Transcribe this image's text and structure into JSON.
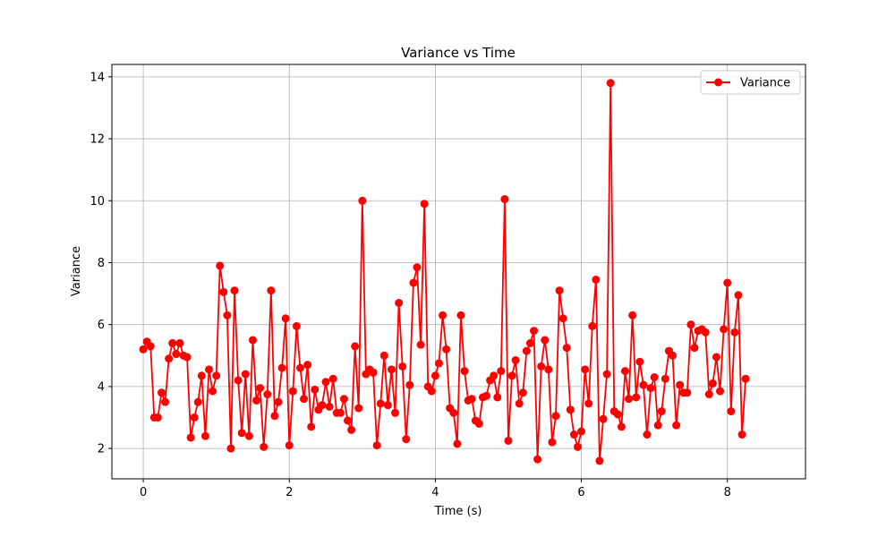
{
  "chart_data": {
    "type": "line",
    "title": "Variance vs Time",
    "xlabel": "Time (s)",
    "ylabel": "Variance",
    "xlim": [
      -0.43,
      9.07
    ],
    "ylim": [
      1.02,
      14.4
    ],
    "xticks": [
      0,
      2,
      4,
      6,
      8
    ],
    "yticks": [
      2,
      4,
      6,
      8,
      10,
      12,
      14
    ],
    "grid": true,
    "legend_position": "top-right",
    "series": [
      {
        "name": "Variance",
        "color": "#ff0000",
        "marker": "circle",
        "x_start": 0.0,
        "x_step": 0.05,
        "values": [
          5.2,
          5.45,
          5.3,
          3.0,
          3.0,
          3.8,
          3.5,
          4.9,
          5.4,
          5.05,
          5.4,
          5.0,
          4.95,
          2.35,
          3.0,
          3.5,
          4.35,
          2.4,
          4.55,
          3.85,
          4.35,
          7.9,
          7.05,
          6.3,
          2.0,
          7.1,
          4.2,
          2.5,
          4.4,
          2.4,
          5.5,
          3.55,
          3.95,
          2.05,
          3.75,
          7.1,
          3.05,
          3.5,
          4.6,
          6.2,
          2.1,
          3.85,
          5.95,
          4.6,
          3.6,
          4.7,
          2.7,
          3.9,
          3.25,
          3.4,
          4.15,
          3.35,
          4.25,
          3.15,
          3.15,
          3.6,
          2.9,
          2.6,
          5.3,
          3.3,
          10.0,
          4.4,
          4.55,
          4.45,
          2.1,
          3.45,
          5.0,
          3.4,
          4.55,
          3.15,
          6.7,
          4.65,
          2.3,
          4.05,
          7.35,
          7.85,
          5.35,
          9.9,
          4.0,
          3.85,
          4.35,
          4.75,
          6.3,
          5.2,
          3.3,
          3.15,
          2.15,
          6.3,
          4.5,
          3.55,
          3.6,
          2.9,
          2.8,
          3.65,
          3.7,
          4.2,
          4.35,
          3.65,
          4.5,
          10.05,
          2.25,
          4.35,
          4.85,
          3.45,
          3.8,
          5.15,
          5.4,
          5.8,
          1.65,
          4.65,
          5.5,
          4.55,
          2.2,
          3.05,
          7.1,
          6.2,
          5.25,
          3.25,
          2.45,
          2.05,
          2.55,
          4.55,
          3.45,
          5.95,
          7.45,
          1.6,
          2.95,
          4.4,
          13.8,
          3.2,
          3.1,
          2.7,
          4.5,
          3.6,
          6.3,
          3.65,
          4.8,
          4.05,
          2.45,
          3.95,
          4.3,
          2.75,
          3.2,
          4.25,
          5.15,
          5.0,
          2.75,
          4.05,
          3.8,
          3.8,
          6.0,
          5.25,
          5.8,
          5.85,
          5.75,
          3.75,
          4.1,
          4.95,
          3.85,
          5.85,
          7.35,
          3.2,
          5.75,
          6.95,
          2.45,
          4.25
        ]
      }
    ]
  }
}
